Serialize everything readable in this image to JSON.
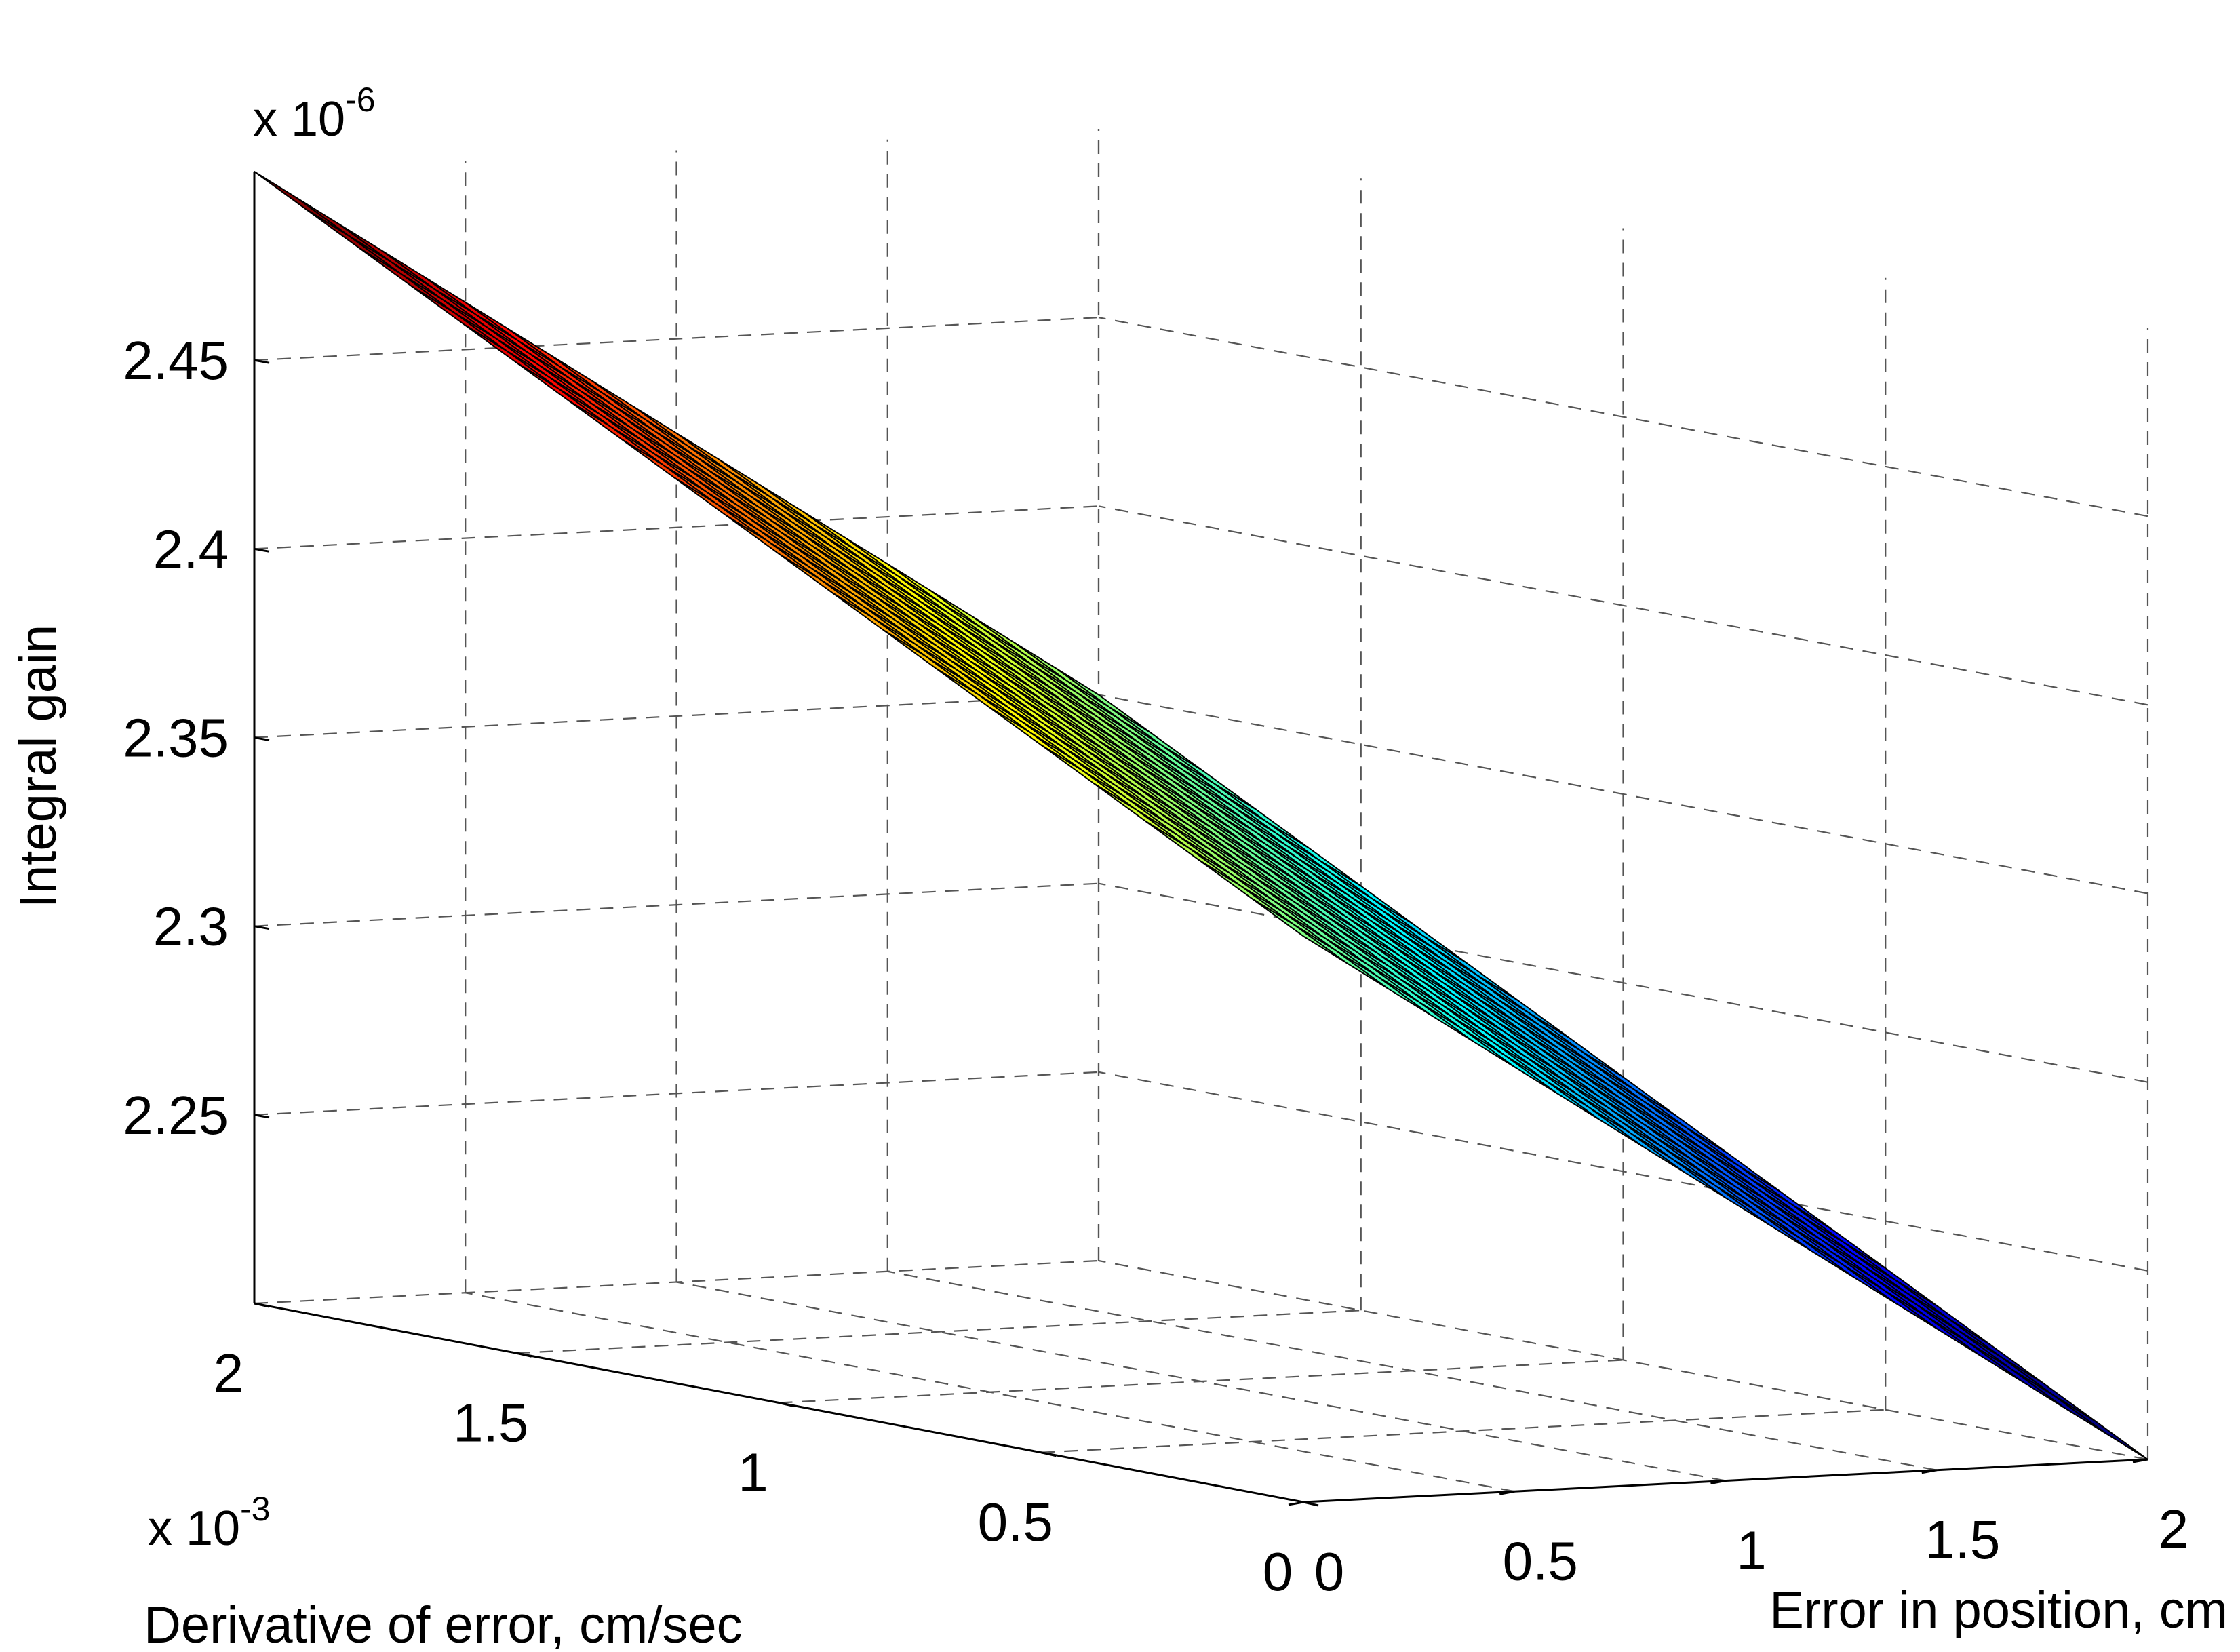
{
  "chart_data": {
    "type": "surface",
    "title": "",
    "xlabel": "Error in position, cm",
    "ylabel": "Derivative of error,  cm/sec",
    "zlabel": "Integral gain",
    "x_ticks": [
      "0",
      "0.5",
      "1",
      "1.5",
      "2"
    ],
    "y_ticks": [
      "0",
      "0.5",
      "1",
      "1.5",
      "2"
    ],
    "z_ticks": [
      "2.25",
      "2.3",
      "2.35",
      "2.4",
      "2.45"
    ],
    "y_exponent": {
      "base": "x 10",
      "power": "-3"
    },
    "z_exponent": {
      "base": "x 10",
      "power": "-6"
    },
    "xlim": [
      0,
      2
    ],
    "ylim": [
      0,
      0.002
    ],
    "zlim": [
      2.2,
      2.5
    ],
    "z_scale": 1e-06,
    "y_scale": 0.001,
    "colormap": "jet",
    "grid": true,
    "mesh_size": [
      21,
      21
    ],
    "surface_corners": [
      {
        "x": 0,
        "y": 0,
        "z": 2.35
      },
      {
        "x": 2,
        "y": 0,
        "z": 2.2
      },
      {
        "x": 0,
        "y": 0.002,
        "z": 2.5
      },
      {
        "x": 2,
        "y": 0.002,
        "z": 2.35
      }
    ],
    "z_plane": {
      "z0": 2.35,
      "dz_dx": -0.075,
      "dz_dy": 75
    }
  }
}
